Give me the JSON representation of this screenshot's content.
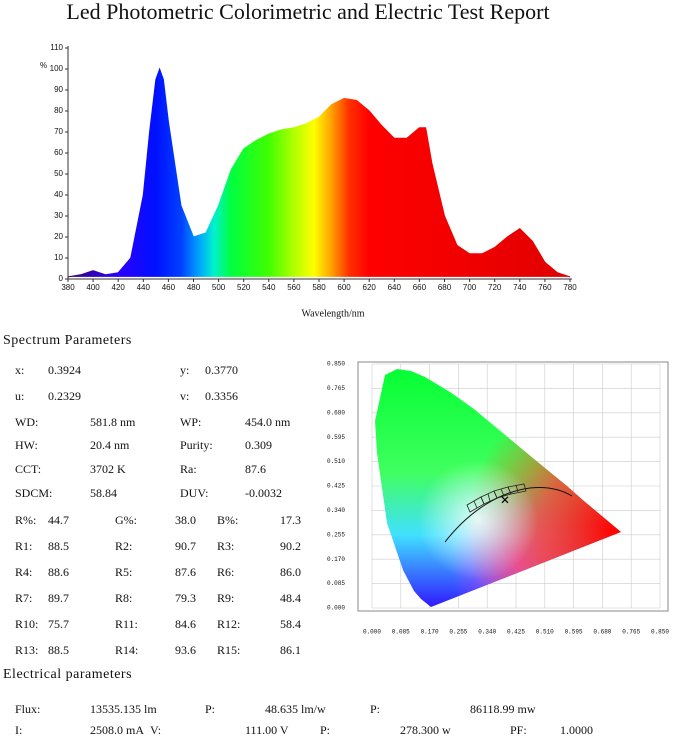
{
  "header": {
    "title": "Led Photometric Colorimetric and Electric Test Report"
  },
  "spectrum": {
    "y_label": "%",
    "x_label": "Wavelength/nm",
    "xlim": [
      380,
      780
    ],
    "ylim": [
      0,
      110
    ],
    "xticks": [
      380,
      400,
      420,
      440,
      460,
      480,
      500,
      520,
      540,
      560,
      580,
      600,
      620,
      640,
      660,
      680,
      700,
      720,
      740,
      760,
      780
    ],
    "yticks": [
      0,
      10,
      20,
      30,
      40,
      50,
      60,
      70,
      80,
      90,
      100,
      110
    ],
    "x": [
      380,
      390,
      400,
      410,
      420,
      430,
      440,
      445,
      450,
      453,
      456,
      460,
      470,
      480,
      490,
      500,
      510,
      520,
      530,
      540,
      550,
      560,
      570,
      580,
      590,
      600,
      610,
      620,
      630,
      640,
      650,
      660,
      665,
      670,
      680,
      690,
      700,
      710,
      720,
      730,
      740,
      750,
      760,
      770,
      780
    ],
    "values": [
      1,
      2,
      4,
      2,
      3,
      10,
      40,
      70,
      95,
      100,
      95,
      75,
      35,
      20,
      22,
      35,
      52,
      62,
      66,
      69,
      71,
      72,
      74,
      77,
      83,
      86,
      85,
      80,
      73,
      67,
      67,
      72,
      72,
      55,
      30,
      16,
      12,
      12,
      15,
      20,
      24,
      18,
      8,
      3,
      1
    ]
  },
  "spectrum_parameters": {
    "heading": "Spectrum Parameters",
    "rows": [
      [
        "x:",
        "0.3924",
        "y:",
        "0.3770"
      ],
      [
        "u:",
        "0.2329",
        "v:",
        "0.3356"
      ],
      [
        "WD:",
        "581.8 nm",
        "WP:",
        "454.0 nm"
      ],
      [
        "HW:",
        "20.4 nm",
        "Purity:",
        "0.309"
      ],
      [
        "CCT:",
        "3702 K",
        "Ra:",
        "87.6"
      ],
      [
        "SDCM:",
        "58.84",
        "DUV:",
        "-0.0032"
      ],
      [
        "R%:",
        "44.7",
        "G%:",
        "38.0",
        "B%:",
        "17.3"
      ],
      [
        "R1:",
        "88.5",
        "R2:",
        "90.7",
        "R3:",
        "90.2"
      ],
      [
        "R4:",
        "88.6",
        "R5:",
        "87.6",
        "R6:",
        "86.0"
      ],
      [
        "R7:",
        "89.7",
        "R8:",
        "79.3",
        "R9:",
        "48.4"
      ],
      [
        "R10:",
        "75.7",
        "R11:",
        "84.6",
        "R12:",
        "58.4"
      ],
      [
        "R13:",
        "88.5",
        "R14:",
        "93.6",
        "R15:",
        "86.1"
      ]
    ]
  },
  "cie": {
    "xlim": [
      0,
      0.85
    ],
    "ylim": [
      0,
      0.85
    ],
    "xticks": [
      {
        "value": 0,
        "label": "0.000"
      },
      {
        "value": 0.085,
        "label": "0.085"
      },
      {
        "value": 0.17,
        "label": "0.170"
      },
      {
        "value": 0.255,
        "label": "0.255"
      },
      {
        "value": 0.34,
        "label": "0.340"
      },
      {
        "value": 0.425,
        "label": "0.425"
      },
      {
        "value": 0.51,
        "label": "0.510"
      },
      {
        "value": 0.595,
        "label": "0.595"
      },
      {
        "value": 0.68,
        "label": "0.680"
      },
      {
        "value": 0.765,
        "label": "0.765"
      },
      {
        "value": 0.85,
        "label": "0.850"
      }
    ],
    "yticks": [
      {
        "value": 0,
        "label": "0.000"
      },
      {
        "value": 0.085,
        "label": "0.085"
      },
      {
        "value": 0.17,
        "label": "0.170"
      },
      {
        "value": 0.255,
        "label": "0.255"
      },
      {
        "value": 0.34,
        "label": "0.340"
      },
      {
        "value": 0.425,
        "label": "0.425"
      },
      {
        "value": 0.51,
        "label": "0.510"
      },
      {
        "value": 0.595,
        "label": "0.595"
      },
      {
        "value": 0.68,
        "label": "0.680"
      },
      {
        "value": 0.765,
        "label": "0.765"
      },
      {
        "value": 0.85,
        "label": "0.850"
      }
    ]
  },
  "electrical": {
    "heading": "Electrical parameters",
    "rows": [
      [
        "Flux:",
        "13535.135 lm",
        "P:",
        "48.635 lm/w",
        "P:",
        "86118.99 mw"
      ],
      [
        "I:",
        "2508.0 mA",
        "V:",
        "111.00 V",
        "P:",
        "278.300 w",
        "PF:",
        "1.0000"
      ]
    ]
  }
}
